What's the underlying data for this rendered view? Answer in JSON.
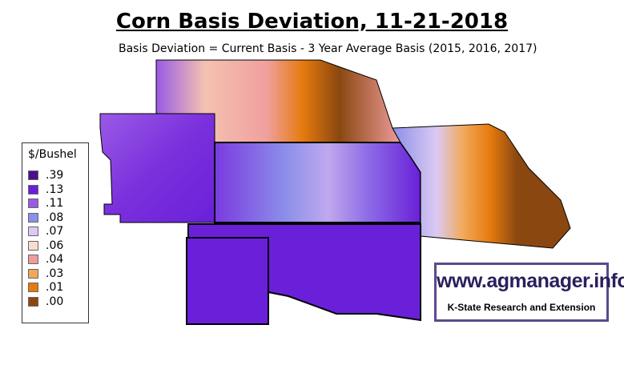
{
  "title": "Corn Basis Deviation, 11-21-2018",
  "subtitle": "Basis Deviation = Current Basis - 3 Year Average Basis (2015, 2016, 2017)",
  "legend": {
    "title": "$/Bushel",
    "items": [
      {
        "label": ".39",
        "color": "#4a0f8e"
      },
      {
        "label": ".13",
        "color": "#6a20d8"
      },
      {
        "label": ".11",
        "color": "#9a5ae6"
      },
      {
        "label": ".08",
        "color": "#8c90ea"
      },
      {
        "label": ".07",
        "color": "#dccaf2"
      },
      {
        "label": ".06",
        "color": "#f9ddcc"
      },
      {
        "label": ".04",
        "color": "#ef9c9c"
      },
      {
        "label": ".03",
        "color": "#f2a858"
      },
      {
        "label": ".01",
        "color": "#e67a0e"
      },
      {
        "label": ".00",
        "color": "#8a4810"
      }
    ]
  },
  "logo": {
    "url": "www.agmanager.info",
    "org": "K-State Research and Extension"
  }
}
